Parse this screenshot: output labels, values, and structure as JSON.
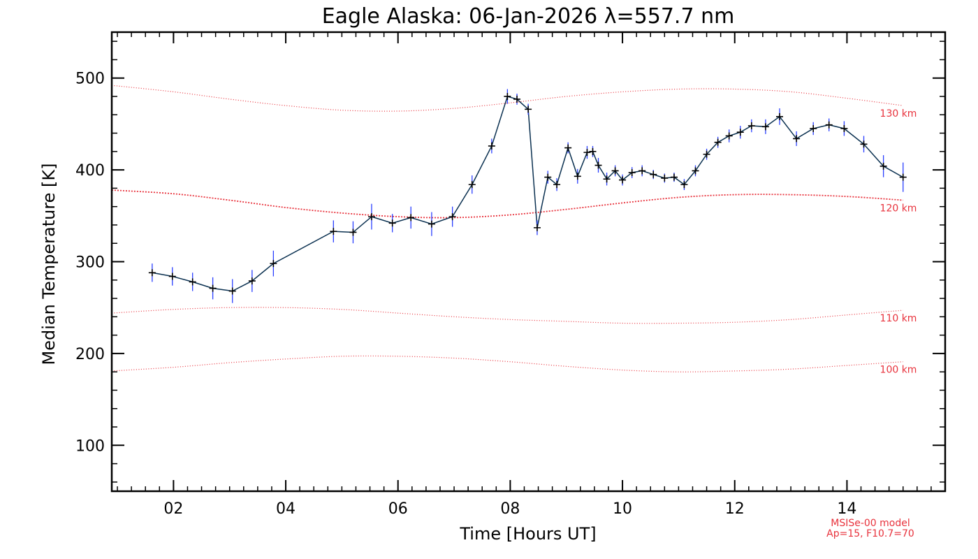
{
  "chart_data": {
    "type": "line",
    "title": "Eagle Alaska: 06-Jan-2026 λ=557.7 nm",
    "xlabel": "Time [Hours UT]",
    "ylabel": "Median Temperature [K]",
    "xlim": [
      0.9,
      15.75
    ],
    "ylim": [
      50,
      550
    ],
    "x_ticks": [
      2,
      4,
      6,
      8,
      10,
      12,
      14
    ],
    "x_tick_labels": [
      "02",
      "04",
      "06",
      "08",
      "10",
      "12",
      "14"
    ],
    "y_ticks": [
      100,
      200,
      300,
      400,
      500
    ],
    "y_tick_labels": [
      "100",
      "200",
      "300",
      "400",
      "500"
    ],
    "series": [
      {
        "name": "Median Temperature",
        "color": "#0a3050",
        "error_color": "#2a3fff",
        "x": [
          1.62,
          1.98,
          2.34,
          2.7,
          3.05,
          3.4,
          3.78,
          4.85,
          5.2,
          5.53,
          5.9,
          6.23,
          6.6,
          6.97,
          7.32,
          7.67,
          7.95,
          8.12,
          8.32,
          8.48,
          8.67,
          8.83,
          9.03,
          9.2,
          9.37,
          9.47,
          9.57,
          9.72,
          9.87,
          10.0,
          10.17,
          10.35,
          10.55,
          10.75,
          10.92,
          11.1,
          11.3,
          11.5,
          11.7,
          11.9,
          12.1,
          12.3,
          12.55,
          12.8,
          13.1,
          13.4,
          13.68,
          13.95,
          14.3,
          14.65,
          15.0
        ],
        "y": [
          288,
          284,
          278,
          271,
          268,
          279,
          298,
          333,
          332,
          349,
          342,
          348,
          341,
          349,
          384,
          426,
          480,
          477,
          466,
          337,
          392,
          384,
          424,
          393,
          419,
          420,
          405,
          390,
          399,
          389,
          397,
          399,
          395,
          391,
          392,
          384,
          399,
          417,
          430,
          437,
          441,
          448,
          447,
          458,
          434,
          445,
          449,
          445,
          428,
          404,
          392
        ],
        "error": [
          10,
          10,
          10,
          12,
          13,
          12,
          14,
          12,
          12,
          14,
          10,
          12,
          13,
          11,
          10,
          8,
          8,
          6,
          6,
          8,
          7,
          7,
          6,
          8,
          7,
          6,
          8,
          7,
          6,
          6,
          6,
          6,
          5,
          5,
          5,
          6,
          6,
          6,
          6,
          7,
          7,
          7,
          8,
          9,
          8,
          7,
          7,
          8,
          9,
          12,
          16
        ]
      }
    ],
    "model_curves": [
      {
        "label": "130 km",
        "x": [
          0.9,
          2,
          3,
          4,
          5,
          6,
          7,
          8,
          9,
          10,
          11,
          12,
          13,
          14,
          15
        ],
        "y": [
          492,
          485,
          477,
          470,
          465,
          464,
          467,
          473,
          480,
          485,
          488,
          488,
          485,
          478,
          470
        ]
      },
      {
        "label": "120 km",
        "x": [
          0.9,
          2,
          3,
          4,
          5,
          6,
          7,
          8,
          9,
          10,
          11,
          12,
          13,
          14,
          15
        ],
        "y": [
          378,
          374,
          367,
          359,
          353,
          349,
          348,
          351,
          357,
          364,
          370,
          373,
          373,
          371,
          367
        ]
      },
      {
        "label": "110 km",
        "x": [
          0.9,
          2,
          3,
          4,
          5,
          6,
          7,
          8,
          9,
          10,
          11,
          12,
          13,
          14,
          15
        ],
        "y": [
          244,
          248,
          250,
          250,
          248,
          244,
          240,
          237,
          235,
          233,
          233,
          234,
          237,
          242,
          247
        ]
      },
      {
        "label": "100 km",
        "x": [
          0.9,
          2,
          3,
          4,
          5,
          6,
          7,
          8,
          9,
          10,
          11,
          12,
          13,
          14,
          15
        ],
        "y": [
          181,
          185,
          190,
          194,
          197,
          197,
          195,
          191,
          186,
          182,
          180,
          181,
          183,
          187,
          191
        ]
      }
    ],
    "model_color": "#e8323c",
    "model_note": [
      "MSISe-00 model",
      "Ap=15, F10.7=70"
    ]
  }
}
